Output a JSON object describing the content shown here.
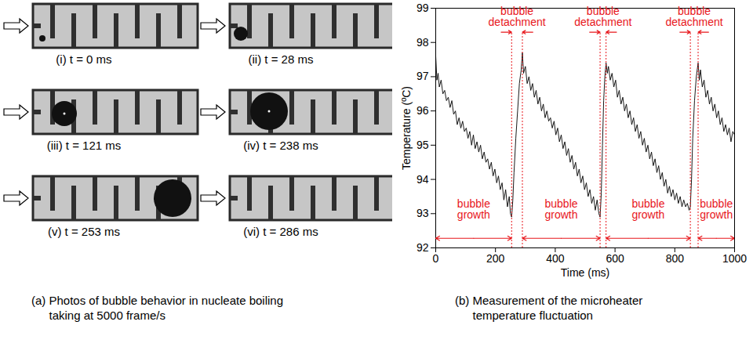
{
  "photos": {
    "caption": "(a) Photos of bubble behavior in nucleate boiling taking at 5000 frame/s",
    "panels": [
      {
        "label": "(i) t = 0 ms"
      },
      {
        "label": "(ii) t = 28 ms"
      },
      {
        "label": "(iii) t = 121 ms"
      },
      {
        "label": "(iv) t = 238 ms"
      },
      {
        "label": "(v) t = 253 ms"
      },
      {
        "label": "(vi) t = 286 ms"
      }
    ]
  },
  "chart_data": {
    "type": "line",
    "title": "(b) Measurement of the microheater temperature fluctuation",
    "x_label": "Time (ms)",
    "y_label": "Temperature (ºC)",
    "x": [
      0,
      4,
      8,
      12,
      18,
      24,
      30,
      36,
      42,
      48,
      54,
      60,
      66,
      72,
      78,
      84,
      90,
      96,
      102,
      108,
      114,
      120,
      126,
      132,
      138,
      144,
      150,
      156,
      162,
      168,
      174,
      180,
      186,
      192,
      198,
      204,
      210,
      216,
      222,
      228,
      234,
      240,
      246,
      250,
      254,
      258,
      262,
      268,
      274,
      280,
      286,
      290,
      294,
      300,
      306,
      312,
      318,
      324,
      330,
      336,
      342,
      348,
      354,
      360,
      366,
      372,
      378,
      384,
      390,
      396,
      402,
      408,
      414,
      420,
      426,
      432,
      438,
      444,
      450,
      456,
      462,
      468,
      474,
      480,
      486,
      492,
      498,
      504,
      510,
      516,
      522,
      528,
      534,
      540,
      546,
      550,
      554,
      558,
      562,
      566,
      570,
      574,
      578,
      584,
      590,
      596,
      602,
      608,
      614,
      620,
      626,
      632,
      638,
      644,
      650,
      656,
      662,
      668,
      674,
      680,
      686,
      692,
      698,
      704,
      710,
      716,
      722,
      728,
      734,
      740,
      746,
      752,
      758,
      764,
      770,
      776,
      782,
      788,
      794,
      800,
      806,
      812,
      818,
      824,
      830,
      836,
      842,
      848,
      852,
      856,
      860,
      866,
      872,
      878,
      882,
      886,
      892,
      898,
      904,
      910,
      916,
      922,
      928,
      934,
      940,
      946,
      952,
      958,
      964,
      970,
      976,
      982,
      988,
      994,
      1000
    ],
    "values": [
      97.6,
      96.9,
      97.1,
      96.7,
      96.9,
      96.5,
      96.6,
      96.3,
      96.4,
      96.1,
      96.3,
      95.9,
      96.0,
      95.6,
      95.8,
      95.5,
      95.7,
      95.4,
      95.5,
      95.2,
      95.4,
      95.0,
      95.3,
      94.9,
      95.1,
      94.8,
      95.0,
      94.6,
      94.8,
      94.5,
      94.6,
      94.3,
      94.5,
      94.1,
      94.3,
      93.9,
      94.1,
      93.7,
      93.9,
      93.4,
      93.7,
      93.2,
      93.5,
      93.0,
      92.9,
      93.4,
      94.2,
      95.2,
      96.0,
      96.8,
      97.2,
      97.7,
      97.1,
      97.3,
      96.8,
      97.0,
      96.6,
      96.8,
      96.4,
      96.6,
      96.2,
      96.4,
      96.0,
      96.2,
      95.8,
      96.0,
      95.7,
      95.8,
      95.5,
      95.7,
      95.3,
      95.5,
      95.1,
      95.3,
      94.9,
      95.1,
      94.7,
      94.9,
      94.5,
      94.7,
      94.3,
      94.5,
      94.1,
      94.3,
      93.9,
      94.1,
      93.7,
      93.9,
      93.5,
      93.7,
      93.3,
      93.5,
      93.1,
      93.4,
      93.0,
      92.9,
      93.6,
      95.0,
      96.3,
      97.0,
      97.4,
      97.1,
      97.3,
      96.9,
      97.1,
      96.7,
      96.9,
      96.4,
      96.6,
      96.2,
      96.4,
      96.0,
      96.2,
      95.8,
      96.0,
      95.6,
      95.8,
      95.4,
      95.6,
      95.2,
      95.4,
      95.0,
      95.2,
      94.8,
      95.0,
      94.6,
      94.8,
      94.4,
      94.6,
      94.2,
      94.4,
      94.0,
      94.2,
      93.8,
      94.0,
      93.6,
      93.8,
      93.5,
      93.7,
      93.4,
      93.6,
      93.3,
      93.5,
      93.2,
      93.4,
      93.2,
      93.3,
      93.1,
      93.2,
      94.0,
      95.2,
      96.3,
      97.0,
      97.4,
      96.9,
      97.2,
      96.7,
      96.9,
      96.4,
      96.6,
      96.2,
      96.4,
      96.0,
      96.2,
      95.8,
      96.0,
      95.6,
      95.8,
      95.4,
      95.6,
      95.3,
      95.5,
      95.1,
      95.4,
      95.3
    ],
    "color": "#000000",
    "xlim": [
      0,
      1000
    ],
    "xticks": [
      0,
      200,
      400,
      600,
      800,
      1000
    ],
    "ylim": [
      92,
      99
    ],
    "yticks": [
      92,
      93,
      94,
      95,
      96,
      97,
      98,
      99
    ],
    "grid": false,
    "annotations": [
      {
        "text": "bubble detachment",
        "x": [
          254,
          290
        ],
        "color": "#e8161b",
        "line_style": "dotted"
      },
      {
        "text": "bubble detachment",
        "x": [
          550,
          570
        ],
        "color": "#e8161b",
        "line_style": "dotted"
      },
      {
        "text": "bubble detachment",
        "x": [
          852,
          878
        ],
        "color": "#e8161b",
        "line_style": "dotted"
      },
      {
        "text": "bubble growth",
        "x": [
          0,
          254
        ],
        "color": "#e8161b",
        "line_style": "solid"
      },
      {
        "text": "bubble growth",
        "x": [
          290,
          550
        ],
        "color": "#e8161b",
        "line_style": "solid"
      },
      {
        "text": "bubble growth",
        "x": [
          570,
          852
        ],
        "color": "#e8161b",
        "line_style": "solid"
      },
      {
        "text": "bubble growth",
        "x": [
          878,
          1000
        ],
        "color": "#e8161b",
        "line_style": "solid"
      }
    ]
  }
}
